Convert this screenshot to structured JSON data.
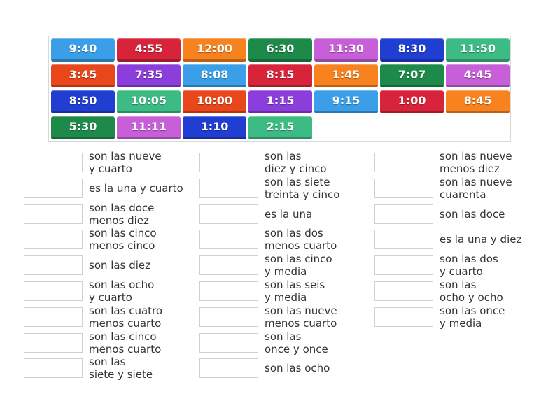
{
  "tiles": [
    {
      "label": "9:40",
      "color": "#3a9fe8"
    },
    {
      "label": "4:55",
      "color": "#d8243a"
    },
    {
      "label": "12:00",
      "color": "#f7821e"
    },
    {
      "label": "6:30",
      "color": "#1e8a4a"
    },
    {
      "label": "11:30",
      "color": "#c760d8"
    },
    {
      "label": "8:30",
      "color": "#213ed2"
    },
    {
      "label": "11:50",
      "color": "#3dbb84"
    },
    {
      "label": "3:45",
      "color": "#e9461b"
    },
    {
      "label": "7:35",
      "color": "#8b3edc"
    },
    {
      "label": "8:08",
      "color": "#3a9fe8"
    },
    {
      "label": "8:15",
      "color": "#d8243a"
    },
    {
      "label": "1:45",
      "color": "#f7821e"
    },
    {
      "label": "7:07",
      "color": "#1e8a4a"
    },
    {
      "label": "4:45",
      "color": "#c760d8"
    },
    {
      "label": "8:50",
      "color": "#213ed2"
    },
    {
      "label": "10:05",
      "color": "#3dbb84"
    },
    {
      "label": "10:00",
      "color": "#e9461b"
    },
    {
      "label": "1:15",
      "color": "#8b3edc"
    },
    {
      "label": "9:15",
      "color": "#3a9fe8"
    },
    {
      "label": "1:00",
      "color": "#d8243a"
    },
    {
      "label": "8:45",
      "color": "#f7821e"
    },
    {
      "label": "5:30",
      "color": "#1e8a4a"
    },
    {
      "label": "11:11",
      "color": "#c760d8"
    },
    {
      "label": "1:10",
      "color": "#213ed2"
    },
    {
      "label": "2:15",
      "color": "#3dbb84"
    }
  ],
  "prompts": [
    [
      [
        "son las nueve",
        "y cuarto"
      ],
      [
        "es la una y cuarto"
      ],
      [
        "son las doce",
        "menos diez"
      ],
      [
        "son las cinco",
        "menos cinco"
      ],
      [
        "son las diez"
      ],
      [
        "son las ocho",
        "y cuarto"
      ],
      [
        "son las cuatro",
        "menos cuarto"
      ],
      [
        "son las cinco",
        "menos cuarto"
      ],
      [
        "son las",
        "siete y siete"
      ]
    ],
    [
      [
        "son las",
        "diez y cinco"
      ],
      [
        "son las siete",
        "treinta y cinco"
      ],
      [
        "es la una"
      ],
      [
        "son las dos",
        "menos cuarto"
      ],
      [
        "son las cinco",
        "y media"
      ],
      [
        "son las seis",
        "y media"
      ],
      [
        "son las nueve",
        "menos cuarto"
      ],
      [
        "son las",
        "once y once"
      ],
      [
        "son las ocho"
      ]
    ],
    [
      [
        "son las nueve",
        "menos diez"
      ],
      [
        "son las nueve",
        "cuarenta"
      ],
      [
        "son las doce"
      ],
      [
        "es la una y diez"
      ],
      [
        "son las dos",
        "y cuarto"
      ],
      [
        "son las",
        "ocho y ocho"
      ],
      [
        "son las once",
        "y media"
      ]
    ]
  ]
}
